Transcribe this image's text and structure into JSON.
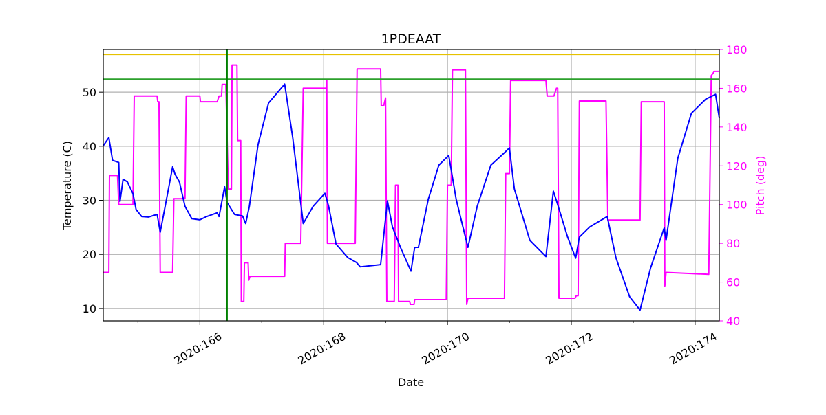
{
  "chart_data": {
    "type": "line",
    "title": "1PDEAAT",
    "xlabel": "Date",
    "ylabel": "Temperature (C)",
    "y2label": "Pitch (deg)",
    "xlim": [
      164.44,
      174.39
    ],
    "xticks": [
      {
        "value": 166,
        "label": "2020:166"
      },
      {
        "value": 168,
        "label": "2020:168"
      },
      {
        "value": 170,
        "label": "2020:170"
      },
      {
        "value": 172,
        "label": "2020:172"
      },
      {
        "value": 174,
        "label": "2020:174"
      }
    ],
    "xminorticks": [
      165,
      167,
      169,
      171,
      173
    ],
    "ylim": [
      7.7,
      57.9
    ],
    "yticks": [
      10,
      20,
      30,
      40,
      50
    ],
    "y2lim": [
      40,
      180
    ],
    "y2ticks": [
      40,
      60,
      80,
      100,
      120,
      140,
      160,
      180
    ],
    "y2color": "#ff00ff",
    "grid": true,
    "hlines": [
      {
        "value": 57.0,
        "color": "#e6c200"
      },
      {
        "value": 52.4,
        "color": "#2ca02c"
      }
    ],
    "vlines": [
      {
        "value": 166.44,
        "color": "#008000"
      }
    ],
    "series": [
      {
        "color": "#0000ff",
        "x": [
          164.44,
          164.53,
          164.59,
          164.69,
          164.71,
          164.76,
          164.83,
          164.92,
          164.97,
          165.06,
          165.17,
          165.31,
          165.36,
          165.44,
          165.56,
          165.6,
          165.67,
          165.76,
          165.87,
          166.0,
          166.11,
          166.28,
          166.31,
          166.4,
          166.44,
          166.56,
          166.69,
          166.74,
          166.8,
          166.94,
          167.11,
          167.37,
          167.5,
          167.67,
          167.83,
          168.02,
          168.08,
          168.2,
          168.39,
          168.53,
          168.59,
          168.92,
          169.03,
          169.11,
          169.24,
          169.41,
          169.47,
          169.53,
          169.69,
          169.86,
          170.02,
          170.14,
          170.33,
          170.48,
          170.7,
          170.92,
          171.0,
          171.08,
          171.33,
          171.59,
          171.71,
          171.78,
          171.94,
          172.07,
          172.13,
          172.3,
          172.58,
          172.72,
          172.94,
          173.11,
          173.28,
          173.5,
          173.53,
          173.72,
          173.94,
          174.17,
          174.33,
          174.39
        ],
        "values": [
          40.1,
          41.6,
          37.4,
          37.0,
          29.8,
          33.9,
          33.4,
          31.2,
          28.3,
          27.0,
          26.9,
          27.4,
          24.1,
          28.9,
          36.2,
          34.8,
          33.4,
          28.9,
          26.6,
          26.4,
          27.0,
          27.7,
          27.0,
          32.5,
          29.6,
          27.4,
          27.1,
          25.7,
          28.9,
          40.3,
          48.0,
          51.5,
          41.6,
          25.7,
          28.9,
          31.3,
          28.9,
          21.9,
          19.4,
          18.5,
          17.7,
          18.1,
          29.9,
          25.1,
          21.3,
          16.9,
          21.3,
          21.3,
          30.2,
          36.5,
          38.3,
          30.2,
          21.3,
          28.9,
          36.5,
          38.8,
          39.7,
          32.1,
          22.6,
          19.6,
          31.7,
          29.2,
          23.2,
          19.3,
          23.2,
          25.1,
          27.0,
          19.4,
          12.2,
          9.7,
          17.5,
          24.9,
          22.6,
          37.8,
          46.1,
          48.7,
          49.6,
          45.2
        ]
      },
      {
        "color": "#ff00ff",
        "axis": "y2",
        "x": [
          164.44,
          164.53,
          164.54,
          164.67,
          164.69,
          164.92,
          164.94,
          165.31,
          165.32,
          165.34,
          165.36,
          165.56,
          165.58,
          165.76,
          165.78,
          166.0,
          166.01,
          166.28,
          166.31,
          166.35,
          166.36,
          166.42,
          166.46,
          166.51,
          166.52,
          166.6,
          166.61,
          166.66,
          166.67,
          166.71,
          166.72,
          166.78,
          166.79,
          166.81,
          167.37,
          167.38,
          167.63,
          167.67,
          168.04,
          168.05,
          168.06,
          168.51,
          168.54,
          168.92,
          168.93,
          168.97,
          169.0,
          169.02,
          169.14,
          169.16,
          169.2,
          169.21,
          169.39,
          169.4,
          169.46,
          169.47,
          169.98,
          170.0,
          170.06,
          170.08,
          170.29,
          170.31,
          170.33,
          170.92,
          170.94,
          171.0,
          171.02,
          171.59,
          171.61,
          171.72,
          171.76,
          171.78,
          171.8,
          172.06,
          172.08,
          172.11,
          172.13,
          172.56,
          172.59,
          173.11,
          173.13,
          173.5,
          173.51,
          173.53,
          174.22,
          174.26,
          174.31,
          174.39
        ],
        "values": [
          65,
          65,
          115,
          115,
          100,
          100,
          156,
          156,
          153,
          153,
          65,
          65,
          103,
          103,
          156,
          156,
          153,
          153,
          156,
          156,
          162,
          162,
          108,
          108,
          172,
          172,
          133,
          133,
          50,
          50,
          70,
          70,
          61,
          63,
          63,
          80,
          80,
          160,
          160,
          164,
          80,
          80,
          170,
          170,
          151,
          151,
          155,
          50,
          50,
          110,
          110,
          50,
          50,
          48.5,
          48.5,
          51,
          51,
          110,
          110,
          169.5,
          169.5,
          48.5,
          51.7,
          51.7,
          116,
          116,
          164,
          164,
          156,
          156,
          160,
          160,
          51.7,
          51.7,
          53,
          53,
          153.4,
          153.4,
          92,
          92,
          153,
          153,
          58,
          65,
          64,
          166.5,
          168.7,
          168.7
        ]
      }
    ]
  }
}
